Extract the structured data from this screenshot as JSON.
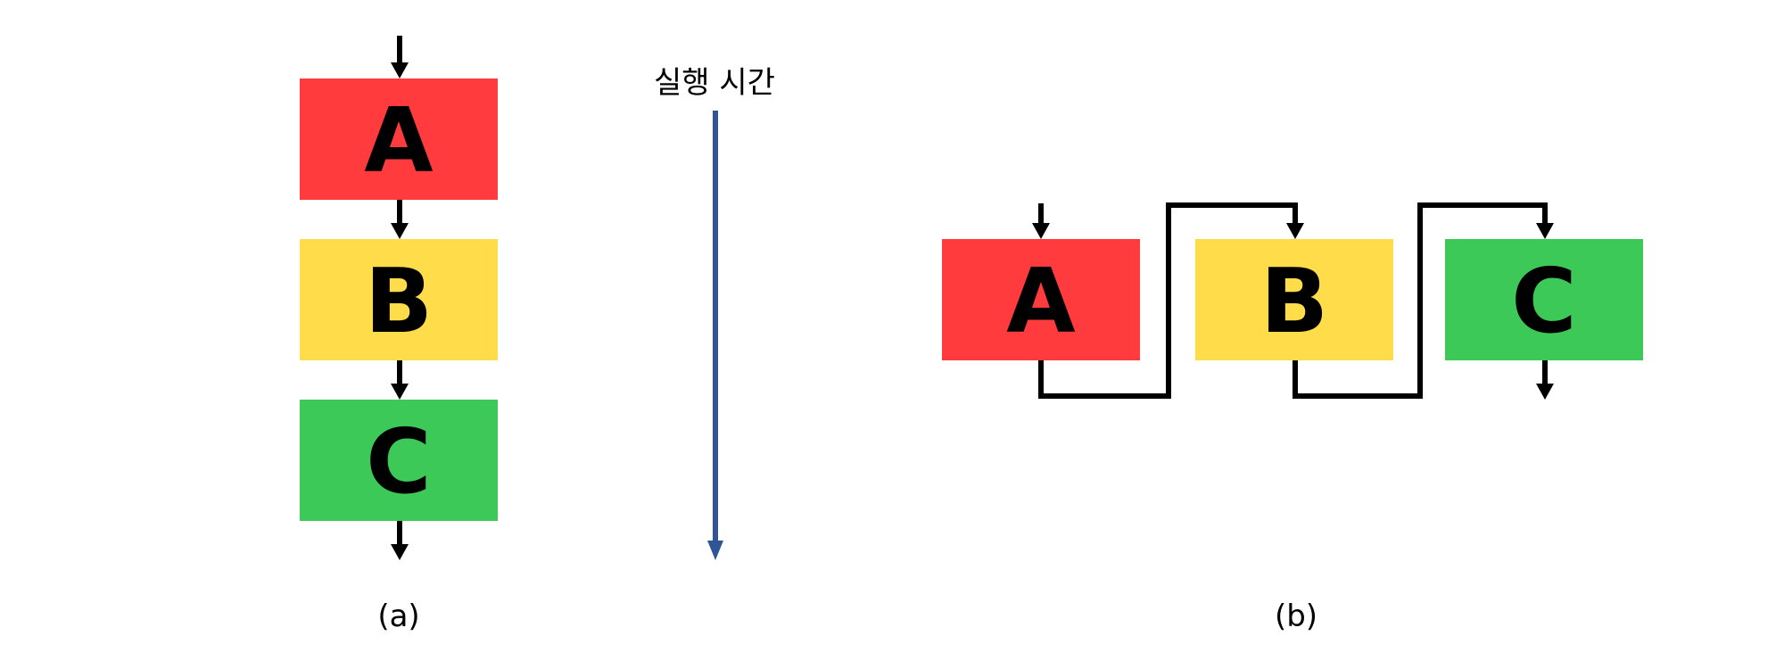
{
  "colors": {
    "box_a": "#FF3B3D",
    "box_b": "#FFDD4A",
    "box_c": "#3DC957",
    "arrow": "#000000",
    "time_axis": "#2F5597"
  },
  "panel_a": {
    "boxes": [
      {
        "letter": "A"
      },
      {
        "letter": "B"
      },
      {
        "letter": "C"
      }
    ],
    "caption": "(a)"
  },
  "panel_b": {
    "boxes": [
      {
        "letter": "A"
      },
      {
        "letter": "B"
      },
      {
        "letter": "C"
      }
    ],
    "caption": "(b)"
  },
  "time_axis": {
    "label": "실행 시간"
  }
}
